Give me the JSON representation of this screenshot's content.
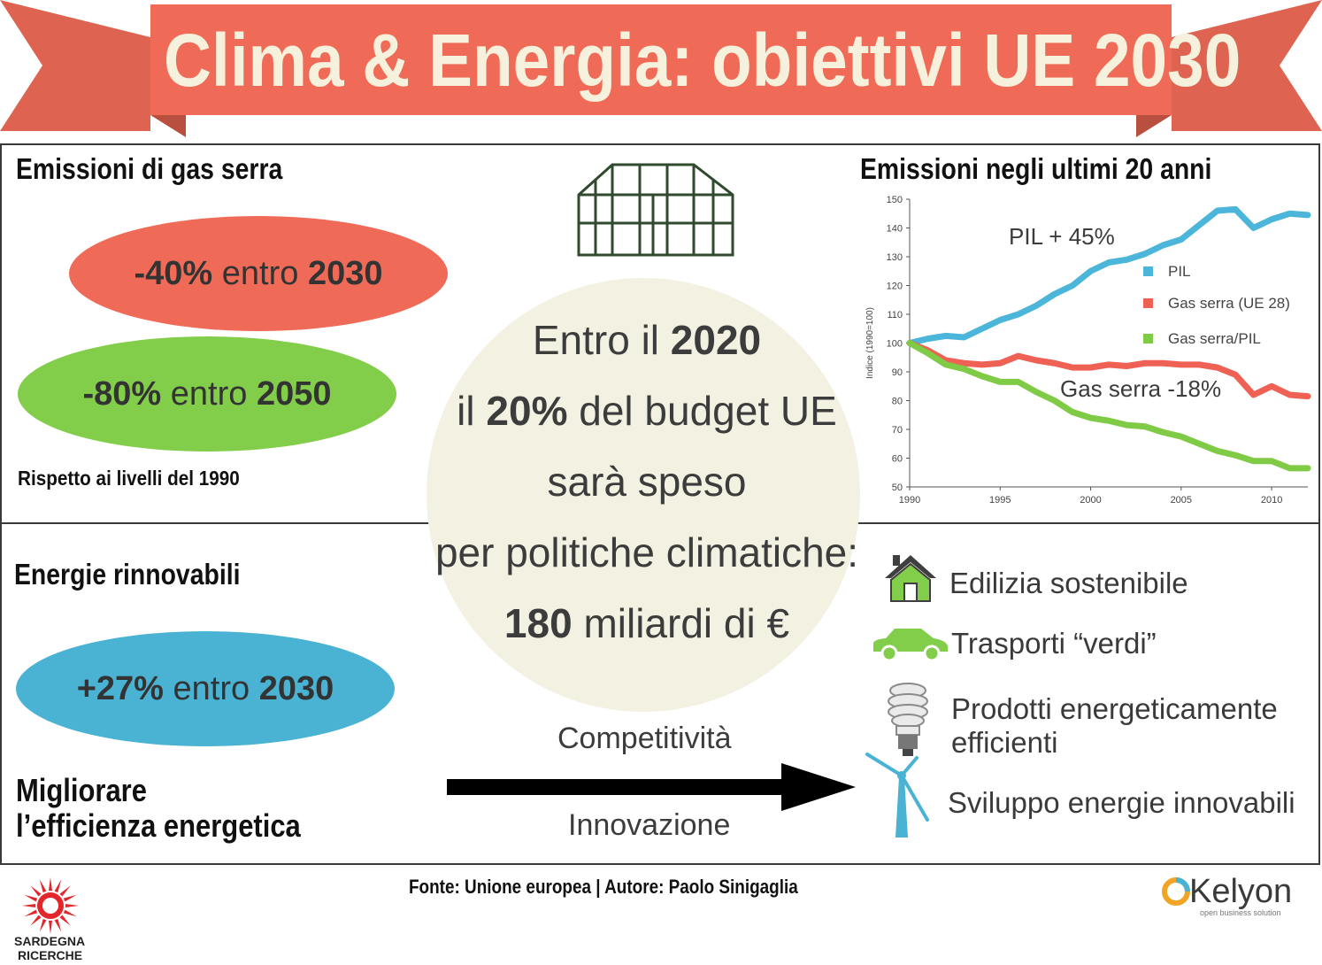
{
  "banner": {
    "title": "Clima & Energia: obiettivi UE 2030"
  },
  "emissions": {
    "heading": "Emissioni di gas serra",
    "target1": {
      "value": "-40%",
      "mid": "entro",
      "year": "2030"
    },
    "target2": {
      "value": "-80%",
      "mid": "entro",
      "year": "2050"
    },
    "note": "Rispetto ai livelli del 1990"
  },
  "center": {
    "line1_pre": "Entro il",
    "line1_bold": "2020",
    "line2_pre": "il",
    "line2_bold": "20%",
    "line2_post": "del budget UE",
    "line3": "sarà speso",
    "line4": "per politiche climatiche:",
    "line5_bold": "180",
    "line5_post": "miliardi di €"
  },
  "renewables": {
    "heading": "Energie rinnovabili",
    "target": {
      "value": "+27%",
      "mid": "entro",
      "year": "2030"
    }
  },
  "efficiency": {
    "heading_line1": "Migliorare",
    "heading_line2": "l’efficienza energetica",
    "arrow_top": "Competitività",
    "arrow_bottom": "Innovazione"
  },
  "policies": [
    {
      "label": "Edilizia sostenibile",
      "icon": "house-icon"
    },
    {
      "label": "Trasporti “verdi”",
      "icon": "car-icon"
    },
    {
      "label_line1": "Prodotti energeticamente",
      "label_line2": "efficienti",
      "icon": "bulb-icon"
    },
    {
      "label": "Sviluppo energie innovabili",
      "icon": "wind-turbine-icon"
    }
  ],
  "footer": {
    "source": "Fonte: Unione europea | Autore: Paolo Sinigaglia",
    "logo_left_line1": "SARDEGNA",
    "logo_left_line2": "RICERCHE",
    "logo_right": "Kelyon",
    "logo_right_tagline": "open business solution"
  },
  "colors": {
    "banner": "#ef6b57",
    "banner_dark": "#d35a48",
    "red": "#ef6b57",
    "green": "#82cd4a",
    "blue": "#4ab3d4",
    "circle": "#f3f1e1",
    "pil_line": "#4bb6d9",
    "ghg_line": "#ef6055",
    "ratio_line": "#7fcb45"
  },
  "chart_data": {
    "type": "line",
    "title": "Emissioni negli ultimi 20 anni",
    "ylabel": "Indice (1990=100)",
    "xlabel": "",
    "xlim": [
      1990,
      2012
    ],
    "ylim": [
      50,
      150
    ],
    "x_ticks": [
      1990,
      1995,
      2000,
      2005,
      2010
    ],
    "y_ticks": [
      50,
      60,
      70,
      80,
      90,
      100,
      110,
      120,
      130,
      140,
      150
    ],
    "legend_position": "right",
    "x": [
      1990,
      1991,
      1992,
      1993,
      1994,
      1995,
      1996,
      1997,
      1998,
      1999,
      2000,
      2001,
      2002,
      2003,
      2004,
      2005,
      2006,
      2007,
      2008,
      2009,
      2010,
      2011,
      2012
    ],
    "series": [
      {
        "name": "PIL",
        "values": [
          100,
          101.5,
          102.5,
          102,
          105,
          108,
          110,
          113,
          117,
          120,
          125,
          128,
          129,
          131,
          134,
          136,
          141,
          146,
          146.5,
          140,
          143,
          145,
          144.5
        ]
      },
      {
        "name": "Gas serra (UE 28)",
        "values": [
          100,
          97.5,
          94,
          93,
          92.5,
          93,
          95.5,
          94,
          93,
          91.5,
          91.5,
          92.5,
          92,
          93,
          93,
          92.5,
          92.5,
          91.5,
          89,
          82,
          85,
          82,
          81.5
        ]
      },
      {
        "name": "Gas serra/PIL",
        "values": [
          100,
          96.5,
          92.5,
          91,
          88.5,
          86.5,
          86.5,
          83,
          80,
          76,
          74,
          73,
          71.5,
          71,
          69,
          67.5,
          65,
          62.5,
          61,
          59,
          59,
          56.5,
          56.5
        ]
      }
    ],
    "annotations": [
      "PIL + 45%",
      "Gas serra -18%"
    ]
  }
}
